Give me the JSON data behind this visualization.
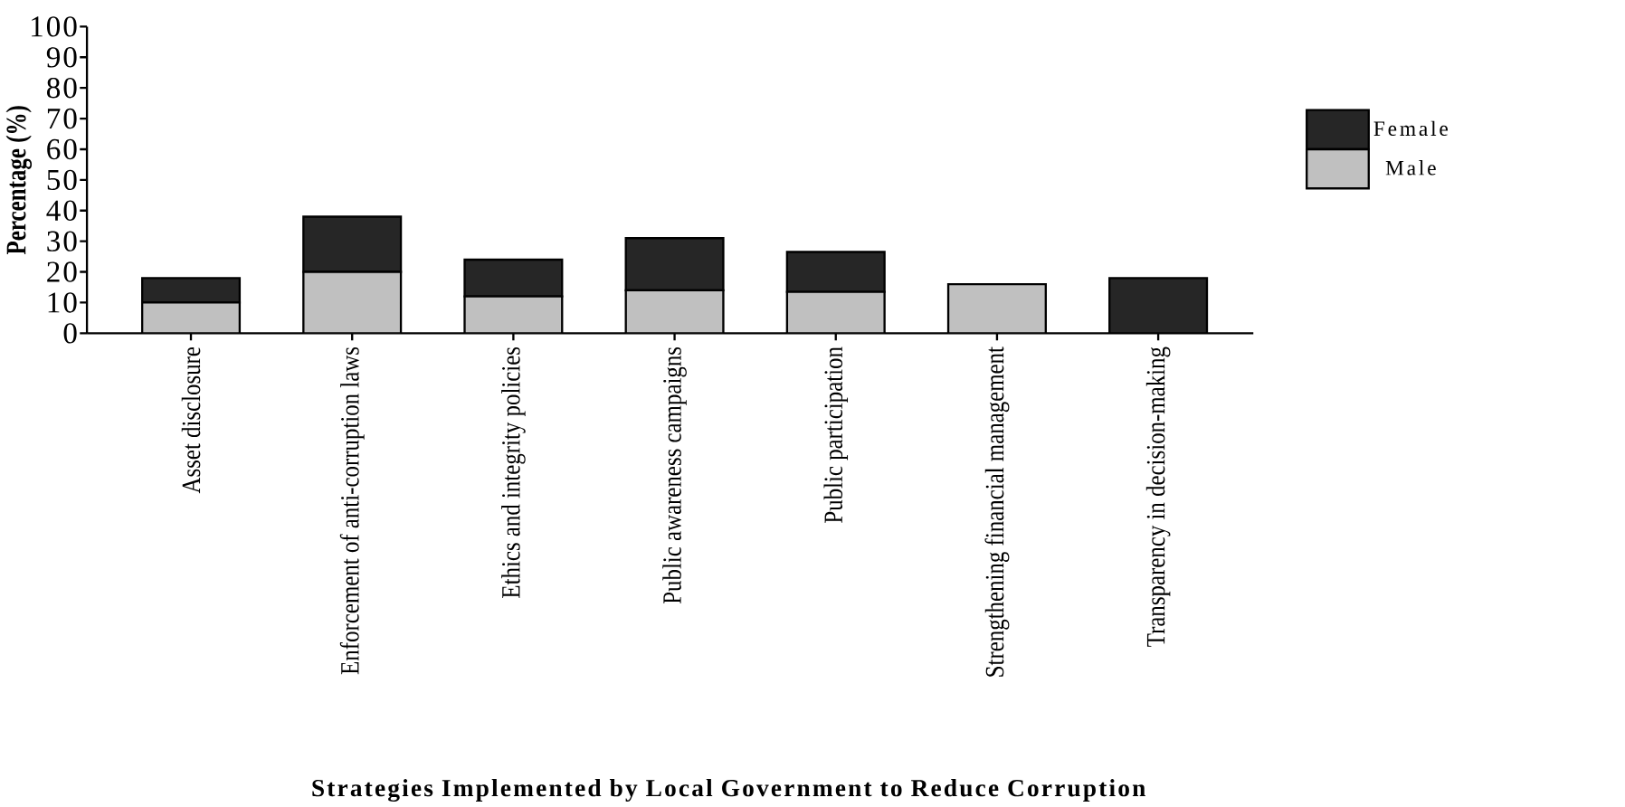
{
  "chart_data": {
    "type": "bar",
    "stacked": true,
    "xlabel": "Strategies Implemented by Local Government to Reduce Corruption",
    "ylabel": "Percentage (%)",
    "categories": [
      "Asset disclosure",
      "Enforcement of anti-corruption laws",
      "Ethics and integrity policies",
      "Public awareness campaigns",
      "Public participation",
      "Strengthening financial management",
      "Transparency in decision-making"
    ],
    "series": [
      {
        "name": "Male",
        "color": "#c0c0c0",
        "values": [
          10,
          20,
          12,
          14,
          13.5,
          16,
          0
        ]
      },
      {
        "name": "Female",
        "color": "#262626",
        "values": [
          8,
          18,
          12,
          17,
          13,
          0,
          18
        ]
      }
    ],
    "ylim": [
      0,
      100
    ],
    "yticks": [
      0,
      10,
      20,
      30,
      40,
      50,
      60,
      70,
      80,
      90,
      100
    ],
    "legend": "right"
  }
}
